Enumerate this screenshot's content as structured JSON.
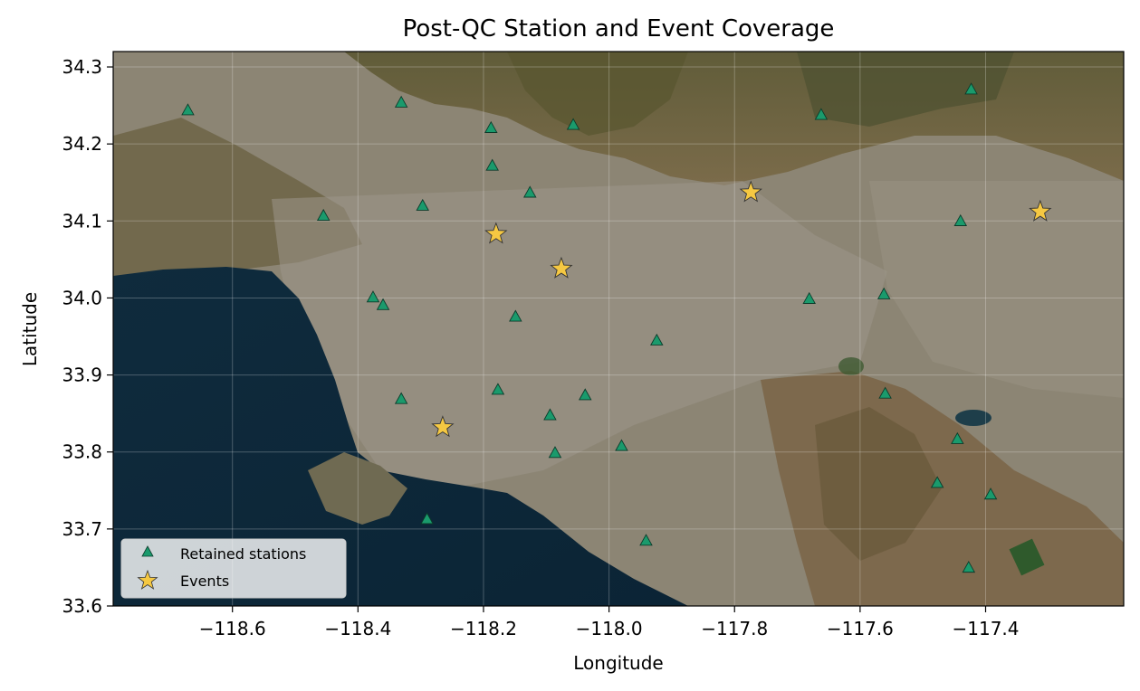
{
  "chart_data": {
    "type": "scatter",
    "title": "Post-QC Station and Event Coverage",
    "xlabel": "Longitude",
    "ylabel": "Latitude",
    "xlim": [
      -118.79,
      -117.18
    ],
    "ylim": [
      33.6,
      34.32
    ],
    "xticks": [
      -118.6,
      -118.4,
      -118.2,
      -118.0,
      -117.8,
      -117.6,
      -117.4
    ],
    "xtick_labels": [
      "−118.6",
      "−118.4",
      "−118.2",
      "−118.0",
      "−117.8",
      "−117.6",
      "−117.4"
    ],
    "yticks": [
      33.6,
      33.7,
      33.8,
      33.9,
      34.0,
      34.1,
      34.2,
      34.3
    ],
    "ytick_labels": [
      "33.6",
      "33.7",
      "33.8",
      "33.9",
      "34.0",
      "34.1",
      "34.2",
      "34.3"
    ],
    "grid": true,
    "background": "satellite imagery basemap of the Los Angeles basin",
    "legend_position": "lower-left",
    "series": [
      {
        "name": "Retained stations",
        "marker": "triangle",
        "color": "#1a9a6c",
        "points": [
          [
            -118.671,
            34.244
          ],
          [
            -118.331,
            34.254
          ],
          [
            -118.188,
            34.221
          ],
          [
            -118.057,
            34.225
          ],
          [
            -117.662,
            34.238
          ],
          [
            -117.423,
            34.271
          ],
          [
            -118.186,
            34.172
          ],
          [
            -118.126,
            34.137
          ],
          [
            -118.297,
            34.12
          ],
          [
            -118.455,
            34.107
          ],
          [
            -117.44,
            34.1
          ],
          [
            -118.376,
            34.001
          ],
          [
            -118.36,
            33.991
          ],
          [
            -117.681,
            33.999
          ],
          [
            -117.562,
            34.005
          ],
          [
            -118.149,
            33.976
          ],
          [
            -117.924,
            33.945
          ],
          [
            -118.331,
            33.869
          ],
          [
            -118.177,
            33.881
          ],
          [
            -118.038,
            33.874
          ],
          [
            -117.56,
            33.876
          ],
          [
            -118.094,
            33.848
          ],
          [
            -117.98,
            33.808
          ],
          [
            -118.086,
            33.799
          ],
          [
            -117.445,
            33.817
          ],
          [
            -117.477,
            33.76
          ],
          [
            -117.392,
            33.745
          ],
          [
            -118.29,
            33.713
          ],
          [
            -117.941,
            33.685
          ],
          [
            -117.427,
            33.65
          ]
        ]
      },
      {
        "name": "Events",
        "marker": "star",
        "color": "#f5c842",
        "points": [
          [
            -117.774,
            34.137
          ],
          [
            -117.313,
            34.112
          ],
          [
            -118.18,
            34.083
          ],
          [
            -118.076,
            34.038
          ],
          [
            -118.265,
            33.832
          ]
        ]
      }
    ]
  }
}
